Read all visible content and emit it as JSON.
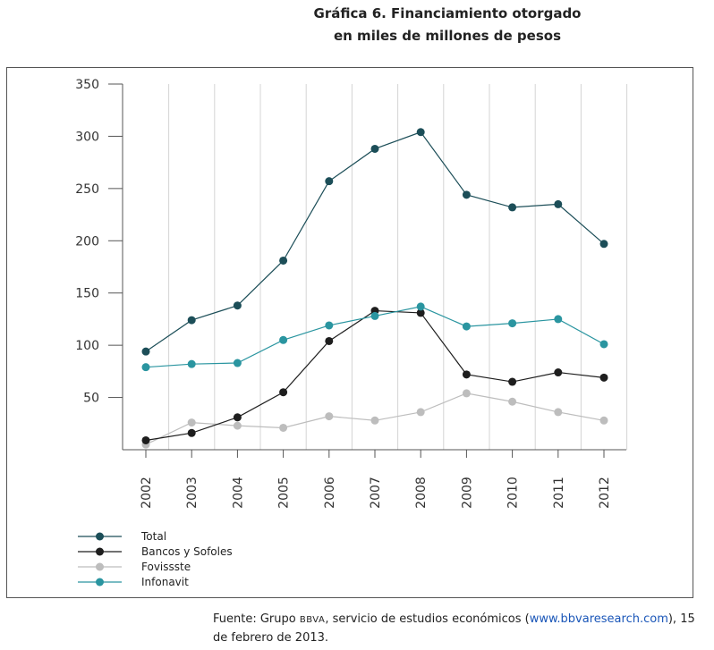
{
  "chart_data": {
    "type": "line",
    "title": "Gráfica 6. Financiamiento otorgado",
    "subtitle": "en miles de millones de pesos",
    "xlabel": "",
    "ylabel": "",
    "x": [
      "2002",
      "2003",
      "2004",
      "2005",
      "2006",
      "2007",
      "2008",
      "2009",
      "2010",
      "2011",
      "2012"
    ],
    "ylim": [
      0,
      350
    ],
    "yticks": [
      50,
      100,
      150,
      200,
      250,
      300,
      350
    ],
    "grid": "vertical",
    "legend_position": "bottom-left",
    "series": [
      {
        "name": "Total",
        "color": "#1c4e58",
        "values": [
          94,
          124,
          138,
          181,
          257,
          288,
          304,
          244,
          232,
          235,
          197
        ]
      },
      {
        "name": "Bancos y Sofoles",
        "color": "#1e1e1e",
        "values": [
          9,
          16,
          31,
          55,
          104,
          133,
          131,
          72,
          65,
          74,
          69
        ]
      },
      {
        "name": "Fovissste",
        "color": "#bdbdbd",
        "values": [
          5,
          26,
          23,
          21,
          32,
          28,
          36,
          54,
          46,
          36,
          28
        ]
      },
      {
        "name": "Infonavit",
        "color": "#2a95a0",
        "values": [
          79,
          82,
          83,
          105,
          119,
          128,
          137,
          118,
          121,
          125,
          101
        ]
      }
    ]
  },
  "source": {
    "prefix": "Fuente: Grupo ",
    "org": "BBVA",
    "middle": ", servicio de estudios económicos (",
    "link": "www.bbvaresearch.com",
    "suffix": "), 15 de febrero de 2013."
  }
}
